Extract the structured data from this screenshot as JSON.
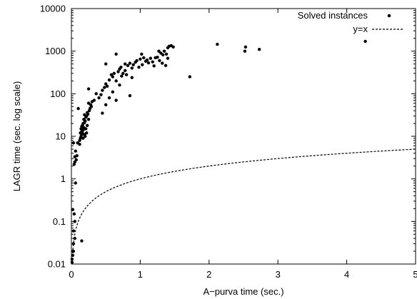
{
  "chart_data": {
    "type": "scatter",
    "xlabel": "A−purva time (sec.)",
    "ylabel": "LAGR time (sec. log scale)",
    "xlim": [
      0,
      5
    ],
    "ylim": [
      0.01,
      10000
    ],
    "yscale": "log",
    "grid": false,
    "legend_position": "top-right",
    "xticks": [
      0,
      1,
      2,
      3,
      4,
      5
    ],
    "yticks": [
      0.01,
      0.1,
      1,
      10,
      100,
      1000,
      10000
    ],
    "xtick_labels": [
      "0",
      "1",
      "2",
      "3",
      "4",
      "5"
    ],
    "ytick_labels": [
      "0.01",
      "0.1",
      "1",
      "10",
      "100",
      "1000",
      "10000"
    ],
    "series": [
      {
        "name": "Solved instances",
        "style": "points",
        "color": "#000000",
        "points": [
          [
            0.01,
            0.011
          ],
          [
            0.01,
            0.013
          ],
          [
            0.02,
            0.016
          ],
          [
            0.02,
            0.02
          ],
          [
            0.03,
            0.02
          ],
          [
            0.03,
            0.03
          ],
          [
            0.05,
            0.04
          ],
          [
            0.03,
            0.06
          ],
          [
            0.05,
            0.1
          ],
          [
            0.04,
            0.15
          ],
          [
            0.02,
            0.19
          ],
          [
            0.15,
            0.035
          ],
          [
            0.06,
            0.8
          ],
          [
            0.04,
            2.2
          ],
          [
            0.05,
            2.5
          ],
          [
            0.07,
            2.8
          ],
          [
            0.05,
            3.3
          ],
          [
            0.08,
            3.5
          ],
          [
            0.06,
            4.5
          ],
          [
            0.03,
            7
          ],
          [
            0.09,
            7
          ],
          [
            0.12,
            6.5
          ],
          [
            0.1,
            45
          ],
          [
            0.12,
            8
          ],
          [
            0.13,
            9
          ],
          [
            0.14,
            10
          ],
          [
            0.15,
            11
          ],
          [
            0.16,
            12
          ],
          [
            0.13,
            12
          ],
          [
            0.17,
            14
          ],
          [
            0.14,
            15
          ],
          [
            0.18,
            16
          ],
          [
            0.15,
            17
          ],
          [
            0.16,
            18
          ],
          [
            0.17,
            20
          ],
          [
            0.19,
            21
          ],
          [
            0.2,
            23
          ],
          [
            0.18,
            25
          ],
          [
            0.21,
            28
          ],
          [
            0.22,
            30
          ],
          [
            0.19,
            32
          ],
          [
            0.24,
            33
          ],
          [
            0.23,
            36
          ],
          [
            0.26,
            40
          ],
          [
            0.27,
            45
          ],
          [
            0.29,
            50
          ],
          [
            0.28,
            55
          ],
          [
            0.25,
            60
          ],
          [
            0.3,
            65
          ],
          [
            0.2,
            10
          ],
          [
            0.22,
            12
          ],
          [
            0.17,
            9
          ],
          [
            0.19,
            11
          ],
          [
            0.23,
            18
          ],
          [
            0.15,
            13
          ],
          [
            0.21,
            15
          ],
          [
            0.25,
            25
          ],
          [
            0.25,
            130
          ],
          [
            0.33,
            70
          ],
          [
            0.36,
            100
          ],
          [
            0.4,
            80
          ],
          [
            0.43,
            95
          ],
          [
            0.45,
            120
          ],
          [
            0.48,
            140
          ],
          [
            0.5,
            170
          ],
          [
            0.52,
            150
          ],
          [
            0.55,
            210
          ],
          [
            0.58,
            280
          ],
          [
            0.6,
            250
          ],
          [
            0.62,
            300
          ],
          [
            0.65,
            200
          ],
          [
            0.68,
            330
          ],
          [
            0.7,
            380
          ],
          [
            0.72,
            420
          ],
          [
            0.75,
            300
          ],
          [
            0.78,
            350
          ],
          [
            0.8,
            280
          ],
          [
            0.82,
            460
          ],
          [
            0.85,
            520
          ],
          [
            0.88,
            400
          ],
          [
            0.9,
            480
          ],
          [
            0.93,
            550
          ],
          [
            0.95,
            600
          ],
          [
            0.98,
            420
          ],
          [
            1.0,
            650
          ],
          [
            1.03,
            480
          ],
          [
            1.05,
            700
          ],
          [
            1.08,
            580
          ],
          [
            1.1,
            620
          ],
          [
            1.12,
            530
          ],
          [
            1.15,
            680
          ],
          [
            1.18,
            560
          ],
          [
            1.2,
            450
          ],
          [
            1.25,
            720
          ],
          [
            1.28,
            600
          ],
          [
            1.3,
            900
          ],
          [
            1.33,
            820
          ],
          [
            1.35,
            1000
          ],
          [
            1.38,
            850
          ],
          [
            1.4,
            1200
          ],
          [
            1.42,
            1300
          ],
          [
            1.45,
            1350
          ],
          [
            1.48,
            1250
          ],
          [
            1.27,
            1000
          ],
          [
            1.22,
            700
          ],
          [
            1.32,
            520
          ],
          [
            1.37,
            460
          ],
          [
            1.4,
            680
          ],
          [
            0.5,
            500
          ],
          [
            0.45,
            35
          ],
          [
            0.5,
            55
          ],
          [
            0.55,
            80
          ],
          [
            0.6,
            110
          ],
          [
            0.65,
            70
          ],
          [
            0.7,
            160
          ],
          [
            0.73,
            260
          ],
          [
            0.78,
            500
          ],
          [
            0.85,
            90
          ],
          [
            0.65,
            850
          ],
          [
            0.88,
            240
          ],
          [
            1.02,
            850
          ],
          [
            1.72,
            250
          ],
          [
            2.12,
            1450
          ],
          [
            2.52,
            1000
          ],
          [
            2.53,
            1250
          ],
          [
            2.73,
            1100
          ],
          [
            4.27,
            1700
          ]
        ]
      },
      {
        "name": "y=x",
        "style": "dashed",
        "color": "#000000",
        "function": "y=x"
      }
    ]
  }
}
